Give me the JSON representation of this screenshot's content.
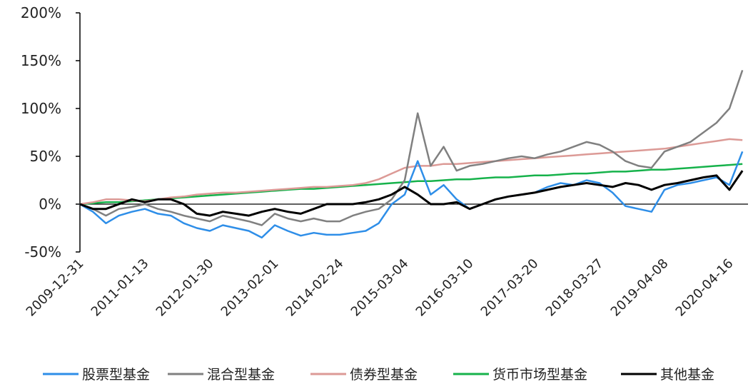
{
  "chart_data": {
    "type": "line",
    "categories": [
      "2009-12-31",
      null,
      null,
      null,
      null,
      "2011-01-13",
      null,
      null,
      null,
      null,
      "2012-01-30",
      null,
      null,
      null,
      null,
      "2013-02-01",
      null,
      null,
      null,
      null,
      "2014-02-24",
      null,
      null,
      null,
      null,
      "2015-03-04",
      null,
      null,
      null,
      null,
      "2016-03-10",
      null,
      null,
      null,
      null,
      "2017-03-20",
      null,
      null,
      null,
      null,
      "2018-03-27",
      null,
      null,
      null,
      null,
      "2019-04-08",
      null,
      null,
      null,
      null,
      "2020-04-16",
      null
    ],
    "ylim": [
      -50,
      200
    ],
    "yticks": [
      {
        "value": -50,
        "label": "-50%"
      },
      {
        "value": 0,
        "label": "0%"
      },
      {
        "value": 50,
        "label": "50%"
      },
      {
        "value": 100,
        "label": "100%"
      },
      {
        "value": 150,
        "label": "150%"
      },
      {
        "value": 200,
        "label": "200%"
      }
    ],
    "legend": "bottom",
    "series": [
      {
        "name": "股票型基金",
        "color": "#2e8ee8",
        "values": [
          0,
          -8,
          -20,
          -12,
          -8,
          -5,
          -10,
          -12,
          -20,
          -25,
          -28,
          -22,
          -25,
          -28,
          -35,
          -22,
          -28,
          -33,
          -30,
          -32,
          -32,
          -30,
          -28,
          -20,
          0,
          10,
          45,
          10,
          20,
          5,
          -5,
          0,
          5,
          8,
          10,
          12,
          18,
          22,
          20,
          25,
          22,
          12,
          -2,
          -5,
          -8,
          15,
          20,
          22,
          25,
          28,
          20,
          55
        ]
      },
      {
        "name": "混合型基金",
        "color": "#808080",
        "values": [
          0,
          -5,
          -12,
          -5,
          -3,
          0,
          -5,
          -8,
          -12,
          -15,
          -18,
          -12,
          -15,
          -18,
          -22,
          -10,
          -15,
          -18,
          -15,
          -18,
          -18,
          -12,
          -8,
          -5,
          5,
          25,
          95,
          40,
          60,
          35,
          40,
          42,
          45,
          48,
          50,
          48,
          52,
          55,
          60,
          65,
          62,
          55,
          45,
          40,
          38,
          55,
          60,
          65,
          75,
          85,
          100,
          140
        ]
      },
      {
        "name": "债券型基金",
        "color": "#dc9a96",
        "values": [
          0,
          2,
          5,
          5,
          4,
          3,
          5,
          7,
          8,
          10,
          11,
          12,
          12,
          13,
          14,
          15,
          16,
          17,
          18,
          18,
          19,
          20,
          22,
          26,
          32,
          38,
          40,
          40,
          42,
          42,
          43,
          44,
          45,
          46,
          47,
          48,
          49,
          50,
          51,
          52,
          53,
          54,
          55,
          56,
          57,
          58,
          60,
          62,
          64,
          66,
          68,
          67
        ]
      },
      {
        "name": "货币市场型基金",
        "color": "#16b24b",
        "values": [
          0,
          1,
          2,
          2,
          3,
          4,
          5,
          6,
          7,
          8,
          9,
          10,
          11,
          12,
          13,
          14,
          15,
          16,
          16,
          17,
          18,
          19,
          20,
          21,
          22,
          23,
          24,
          24,
          25,
          26,
          26,
          27,
          28,
          28,
          29,
          30,
          30,
          31,
          32,
          32,
          33,
          34,
          34,
          35,
          36,
          36,
          37,
          38,
          39,
          40,
          41,
          42
        ]
      },
      {
        "name": "其他基金",
        "color": "#000000",
        "values": [
          0,
          -5,
          -5,
          0,
          5,
          2,
          5,
          5,
          0,
          -10,
          -12,
          -8,
          -10,
          -12,
          -8,
          -5,
          -8,
          -10,
          -5,
          0,
          0,
          0,
          2,
          5,
          10,
          18,
          10,
          0,
          0,
          2,
          -5,
          0,
          5,
          8,
          10,
          12,
          15,
          18,
          20,
          22,
          20,
          18,
          22,
          20,
          15,
          20,
          22,
          25,
          28,
          30,
          15,
          35
        ]
      }
    ]
  }
}
